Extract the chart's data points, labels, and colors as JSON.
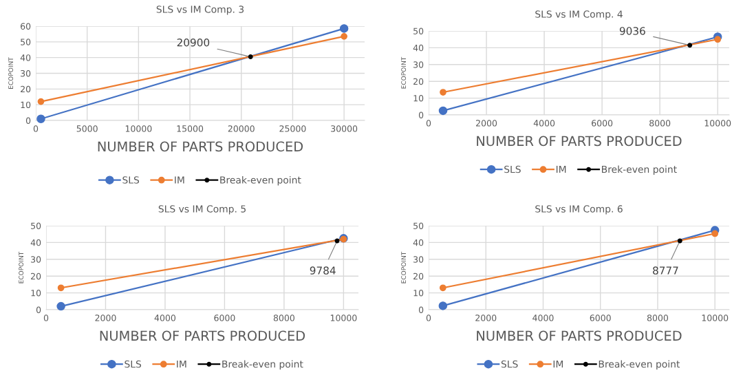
{
  "chart_data": [
    {
      "type": "line",
      "title": "SLS vs IM Comp. 3",
      "xlabel": "NUMBER OF PARTS PRODUCED",
      "ylabel": "ECOPOINT",
      "xlim": [
        0,
        32000
      ],
      "xticks": [
        0,
        5000,
        10000,
        15000,
        20000,
        25000,
        30000
      ],
      "ylim": [
        0,
        60
      ],
      "yticks": [
        0,
        10,
        20,
        30,
        40,
        50,
        60
      ],
      "grid": true,
      "legend": "bottom",
      "marker": "circle",
      "line_style": "solid",
      "series": [
        {
          "name": "SLS",
          "color": "#4472c4",
          "x": [
            500,
            30000
          ],
          "values": [
            1,
            58.5
          ]
        },
        {
          "name": "IM",
          "color": "#ed7d31",
          "x": [
            500,
            30000
          ],
          "values": [
            12,
            53.5
          ]
        },
        {
          "name": "Break-even point",
          "color": "#000000",
          "x": [
            20900
          ],
          "values": [
            40.5
          ]
        }
      ],
      "annotations": [
        {
          "text": "20900",
          "x": 20900,
          "y": 40.5
        }
      ]
    },
    {
      "type": "line",
      "title": "SLS vs IM Comp. 4",
      "xlabel": "NUMBER OF PARTS PRODUCED",
      "ylabel": "ECOPOINT",
      "xlim": [
        0,
        10400
      ],
      "xticks": [
        0,
        2000,
        4000,
        6000,
        8000,
        10000
      ],
      "ylim": [
        0,
        50
      ],
      "yticks": [
        0,
        10,
        20,
        30,
        40,
        50
      ],
      "grid": true,
      "legend": "bottom",
      "marker": "circle",
      "line_style": "solid",
      "series": [
        {
          "name": "SLS",
          "color": "#4472c4",
          "x": [
            500,
            10000
          ],
          "values": [
            2.5,
            46.5
          ]
        },
        {
          "name": "IM",
          "color": "#ed7d31",
          "x": [
            500,
            10000
          ],
          "values": [
            13.5,
            45
          ]
        },
        {
          "name": "Brek-even point",
          "color": "#000000",
          "x": [
            9036
          ],
          "values": [
            41.5
          ]
        }
      ],
      "annotations": [
        {
          "text": "9036",
          "x": 9036,
          "y": 41.5
        }
      ]
    },
    {
      "type": "line",
      "title": "SLS vs IM Comp. 5",
      "xlabel": "NUMBER OF PARTS PRODUCED",
      "ylabel": "ECOPOINT",
      "xlim": [
        0,
        10500
      ],
      "xticks": [
        0,
        2000,
        4000,
        6000,
        8000,
        10000
      ],
      "ylim": [
        0,
        50
      ],
      "yticks": [
        0,
        10,
        20,
        30,
        40,
        50
      ],
      "grid": true,
      "legend": "bottom",
      "marker": "circle",
      "line_style": "solid",
      "series": [
        {
          "name": "SLS",
          "color": "#4472c4",
          "x": [
            500,
            10000
          ],
          "values": [
            2,
            42.5
          ]
        },
        {
          "name": "IM",
          "color": "#ed7d31",
          "x": [
            500,
            10000
          ],
          "values": [
            13,
            42
          ]
        },
        {
          "name": "Break-even point",
          "color": "#000000",
          "x": [
            9784
          ],
          "values": [
            41
          ]
        }
      ],
      "annotations": [
        {
          "text": "9784",
          "x": 9784,
          "y": 41
        }
      ]
    },
    {
      "type": "line",
      "title": "SLS vs IM Comp. 6",
      "xlabel": "NUMBER OF PARTS PRODUCED",
      "ylabel": "ECOPOINT",
      "xlim": [
        0,
        10500
      ],
      "xticks": [
        0,
        2000,
        4000,
        6000,
        8000,
        10000
      ],
      "ylim": [
        0,
        50
      ],
      "yticks": [
        0,
        10,
        20,
        30,
        40,
        50
      ],
      "grid": true,
      "legend": "bottom",
      "marker": "circle",
      "line_style": "solid",
      "series": [
        {
          "name": "SLS",
          "color": "#4472c4",
          "x": [
            500,
            10000
          ],
          "values": [
            2.3,
            47.3
          ]
        },
        {
          "name": "IM",
          "color": "#ed7d31",
          "x": [
            500,
            10000
          ],
          "values": [
            13,
            45.3
          ]
        },
        {
          "name": "Break-even point",
          "color": "#000000",
          "x": [
            8777
          ],
          "values": [
            41
          ]
        }
      ],
      "annotations": [
        {
          "text": "8777",
          "x": 8777,
          "y": 41
        }
      ]
    }
  ]
}
